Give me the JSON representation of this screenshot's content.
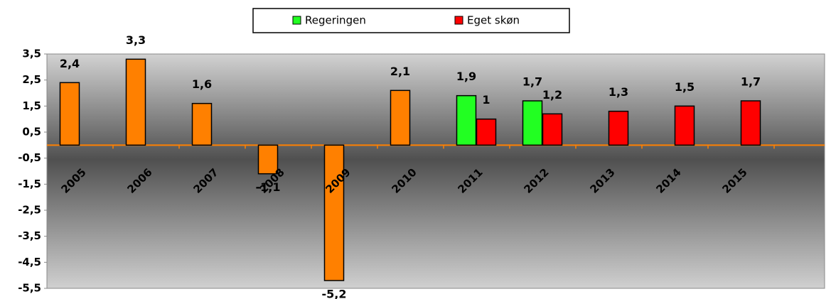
{
  "chart_data": {
    "type": "bar",
    "categories": [
      "2005",
      "2006",
      "2007",
      "2008",
      "2009",
      "2010",
      "2011",
      "2012",
      "2013",
      "2014",
      "2015"
    ],
    "series": [
      {
        "color": "#ff8000",
        "values": [
          2.4,
          3.3,
          1.6,
          -1.1,
          -5.2,
          2.1,
          null,
          null,
          null,
          null,
          null
        ],
        "value_labels": [
          "2,4",
          "3,3",
          "1,6",
          "-1,1",
          "-5,2",
          "2,1",
          null,
          null,
          null,
          null,
          null
        ]
      },
      {
        "name": "Regeringen",
        "color": "#22ff22",
        "values": [
          null,
          null,
          null,
          null,
          null,
          null,
          1.9,
          1.7,
          null,
          null,
          null
        ],
        "value_labels": [
          null,
          null,
          null,
          null,
          null,
          null,
          "1,9",
          "1,7",
          null,
          null,
          null
        ]
      },
      {
        "name": "Eget skøn",
        "color": "#ff0000",
        "values": [
          null,
          null,
          null,
          null,
          null,
          null,
          1,
          1.2,
          1.3,
          1.5,
          1.7
        ],
        "value_labels": [
          null,
          null,
          null,
          null,
          null,
          null,
          "1",
          "1,2",
          "1,3",
          "1,5",
          "1,7"
        ]
      }
    ],
    "ylim": [
      -5.5,
      3.5
    ],
    "yticks": [
      {
        "value": 3.5,
        "label": "3,5"
      },
      {
        "value": 2.5,
        "label": "2,5"
      },
      {
        "value": 1.5,
        "label": "1,5"
      },
      {
        "value": 0.5,
        "label": "0,5"
      },
      {
        "value": -0.5,
        "label": "-0,5"
      },
      {
        "value": -1.5,
        "label": "-1,5"
      },
      {
        "value": -2.5,
        "label": "-2,5"
      },
      {
        "value": -3.5,
        "label": "-3,5"
      },
      {
        "value": -4.5,
        "label": "-4,5"
      },
      {
        "value": -5.5,
        "label": "-5,5"
      }
    ],
    "legend": "top"
  }
}
